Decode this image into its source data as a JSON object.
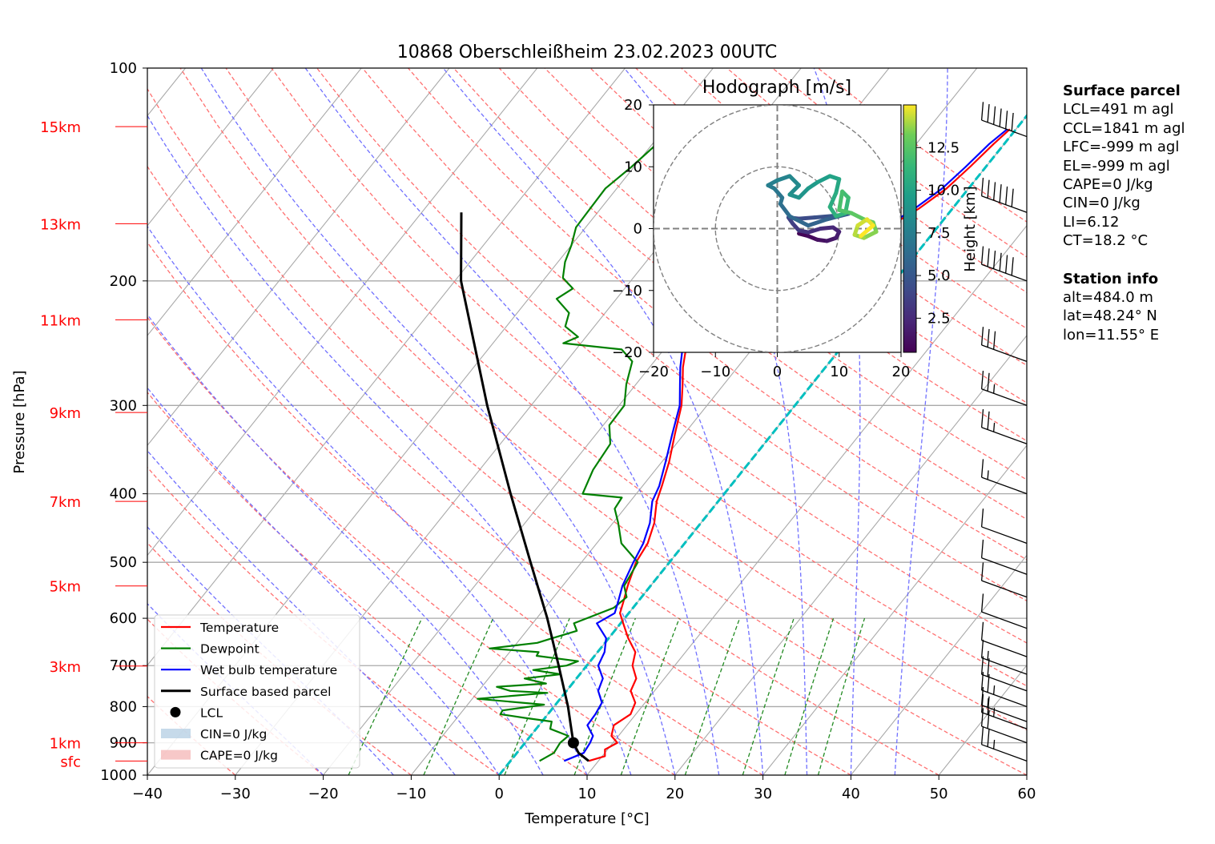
{
  "title": "10868 Oberschleißheim 23.02.2023 00UTC",
  "chart_data": {
    "type": "line",
    "subtype": "skew-T log-P diagram",
    "title": "10868 Oberschleißheim 23.02.2023 00UTC",
    "xlabel": "Temperature [°C]",
    "ylabel": "Pressure [hPa]",
    "xlim": [
      -40,
      60
    ],
    "ylim": [
      1000,
      100
    ],
    "y_scale": "log",
    "skewed_isotherms": true,
    "x_ticks": [
      "−40",
      "−30",
      "−20",
      "−10",
      "0",
      "10",
      "20",
      "30",
      "40",
      "50",
      "60"
    ],
    "y_ticks": [
      "1000",
      "900",
      "800",
      "700",
      "600",
      "500",
      "400",
      "300",
      "200",
      "100"
    ],
    "height_labels": [
      {
        "label": "sfc",
        "p": 955
      },
      {
        "label": "1km",
        "p": 900
      },
      {
        "label": "3km",
        "p": 701
      },
      {
        "label": "5km",
        "p": 540
      },
      {
        "label": "7km",
        "p": 410
      },
      {
        "label": "9km",
        "p": 307
      },
      {
        "label": "11km",
        "p": 227
      },
      {
        "label": "13km",
        "p": 166
      },
      {
        "label": "15km",
        "p": 121
      }
    ],
    "series": [
      {
        "name": "Temperature",
        "color": "#ff0000",
        "points": [
          [
            955,
            8.9
          ],
          [
            940,
            10.3
          ],
          [
            920,
            9.7
          ],
          [
            900,
            10.5
          ],
          [
            880,
            9.2
          ],
          [
            850,
            8.5
          ],
          [
            820,
            9.4
          ],
          [
            790,
            8.9
          ],
          [
            760,
            7.3
          ],
          [
            730,
            6.8
          ],
          [
            700,
            5.2
          ],
          [
            670,
            4.3
          ],
          [
            640,
            2.2
          ],
          [
            610,
            0.3
          ],
          [
            590,
            -1.0
          ],
          [
            570,
            -1.6
          ],
          [
            540,
            -2.6
          ],
          [
            500,
            -3.8
          ],
          [
            470,
            -4.2
          ],
          [
            440,
            -5.3
          ],
          [
            410,
            -7.0
          ],
          [
            390,
            -7.8
          ],
          [
            360,
            -9.2
          ],
          [
            330,
            -11.0
          ],
          [
            300,
            -12.9
          ],
          [
            280,
            -14.7
          ],
          [
            265,
            -16.2
          ],
          [
            250,
            -17.5
          ],
          [
            237,
            -17.6
          ],
          [
            225,
            -17.2
          ],
          [
            213,
            -15.6
          ],
          [
            200,
            -13.0
          ],
          [
            188,
            -10.9
          ],
          [
            178,
            -7.8
          ],
          [
            168,
            -5.7
          ],
          [
            158,
            -3.8
          ],
          [
            148,
            -2.5
          ],
          [
            138,
            -1.8
          ],
          [
            128,
            -1.2
          ],
          [
            122,
            -0.7
          ]
        ]
      },
      {
        "name": "Dewpoint",
        "color": "#008000",
        "points": [
          [
            955,
            3.3
          ],
          [
            930,
            4.2
          ],
          [
            900,
            4.0
          ],
          [
            880,
            4.3
          ],
          [
            860,
            1.6
          ],
          [
            840,
            1.1
          ],
          [
            830,
            -2.3
          ],
          [
            820,
            -5.4
          ],
          [
            810,
            -5.5
          ],
          [
            795,
            -1.3
          ],
          [
            780,
            -9.4
          ],
          [
            765,
            -2.0
          ],
          [
            760,
            -6.4
          ],
          [
            750,
            -8.3
          ],
          [
            742,
            -3.0
          ],
          [
            730,
            -5.9
          ],
          [
            720,
            -2.2
          ],
          [
            710,
            -5.7
          ],
          [
            700,
            -2.3
          ],
          [
            690,
            -1.4
          ],
          [
            678,
            -6.6
          ],
          [
            670,
            -6.7
          ],
          [
            662,
            -12.6
          ],
          [
            650,
            -7.7
          ],
          [
            640,
            -6.4
          ],
          [
            625,
            -4.3
          ],
          [
            610,
            -5.3
          ],
          [
            580,
            -2.2
          ],
          [
            560,
            -1.7
          ],
          [
            540,
            -3.0
          ],
          [
            500,
            -3.6
          ],
          [
            470,
            -7.2
          ],
          [
            440,
            -9.4
          ],
          [
            420,
            -11.1
          ],
          [
            405,
            -11.3
          ],
          [
            400,
            -16.1
          ],
          [
            370,
            -17.1
          ],
          [
            340,
            -17.5
          ],
          [
            320,
            -19.3
          ],
          [
            300,
            -19.4
          ],
          [
            280,
            -21.1
          ],
          [
            260,
            -22.5
          ],
          [
            250,
            -24.8
          ],
          [
            245,
            -32.0
          ],
          [
            240,
            -30.9
          ],
          [
            232,
            -33.3
          ],
          [
            222,
            -34.1
          ],
          [
            212,
            -36.8
          ],
          [
            205,
            -35.9
          ],
          [
            198,
            -38.0
          ],
          [
            188,
            -39.2
          ],
          [
            178,
            -40.0
          ],
          [
            168,
            -41.1
          ],
          [
            158,
            -41.2
          ],
          [
            148,
            -41.3
          ],
          [
            138,
            -40.3
          ],
          [
            128,
            -39.5
          ],
          [
            122,
            -38.2
          ]
        ]
      },
      {
        "name": "Wet bulb temperature",
        "color": "#0000ff",
        "points": [
          [
            955,
            6.1
          ],
          [
            930,
            7.6
          ],
          [
            900,
            7.4
          ],
          [
            880,
            7.1
          ],
          [
            850,
            5.5
          ],
          [
            820,
            5.4
          ],
          [
            790,
            5.1
          ],
          [
            760,
            3.6
          ],
          [
            730,
            3.0
          ],
          [
            700,
            1.3
          ],
          [
            670,
            0.8
          ],
          [
            640,
            -0.3
          ],
          [
            610,
            -2.7
          ],
          [
            590,
            -1.6
          ],
          [
            570,
            -2.2
          ],
          [
            540,
            -3.2
          ],
          [
            500,
            -4.1
          ],
          [
            470,
            -4.7
          ],
          [
            440,
            -5.8
          ],
          [
            410,
            -7.5
          ],
          [
            390,
            -8.1
          ],
          [
            360,
            -9.6
          ],
          [
            330,
            -11.3
          ],
          [
            300,
            -13.1
          ],
          [
            280,
            -15.0
          ],
          [
            265,
            -16.5
          ],
          [
            250,
            -17.9
          ],
          [
            237,
            -17.8
          ],
          [
            225,
            -17.3
          ],
          [
            213,
            -15.9
          ],
          [
            200,
            -13.2
          ],
          [
            188,
            -11.2
          ],
          [
            178,
            -8.1
          ],
          [
            168,
            -6.0
          ],
          [
            158,
            -4.3
          ],
          [
            148,
            -3.0
          ],
          [
            138,
            -2.3
          ],
          [
            128,
            -1.7
          ],
          [
            122,
            -1.0
          ]
        ]
      },
      {
        "name": "Surface based parcel",
        "color": "#000000",
        "points": [
          [
            955,
            8.9
          ],
          [
            930,
            7.0
          ],
          [
            900,
            5.5
          ],
          [
            850,
            3.6
          ],
          [
            800,
            1.6
          ],
          [
            700,
            -3.2
          ],
          [
            600,
            -8.8
          ],
          [
            500,
            -15.8
          ],
          [
            400,
            -24.3
          ],
          [
            300,
            -35.0
          ],
          [
            200,
            -49.3
          ],
          [
            160,
            -55.5
          ]
        ]
      }
    ],
    "lcl": {
      "p": 900,
      "t": 5.5,
      "label": "LCL"
    },
    "freezing_level_line": {
      "color": "#00bfbf",
      "t": 0
    },
    "legend": {
      "placement": "lower-left",
      "entries": [
        "Temperature",
        "Dewpoint",
        "Wet bulb temperature",
        "Surface based parcel",
        "LCL",
        "CIN=0 J/kg",
        "CAPE=0 J/kg"
      ]
    },
    "wind_barbs": [
      {
        "p": 955,
        "speed_kt": 25
      },
      {
        "p": 900,
        "speed_kt": 20
      },
      {
        "p": 860,
        "speed_kt": 25
      },
      {
        "p": 840,
        "speed_kt": 15
      },
      {
        "p": 800,
        "speed_kt": 25
      },
      {
        "p": 760,
        "speed_kt": 20
      },
      {
        "p": 720,
        "speed_kt": 15
      },
      {
        "p": 680,
        "speed_kt": 10
      },
      {
        "p": 620,
        "speed_kt": 10
      },
      {
        "p": 560,
        "speed_kt": 10
      },
      {
        "p": 520,
        "speed_kt": 10
      },
      {
        "p": 470,
        "speed_kt": 10
      },
      {
        "p": 400,
        "speed_kt": 15
      },
      {
        "p": 340,
        "speed_kt": 25
      },
      {
        "p": 300,
        "speed_kt": 25
      },
      {
        "p": 260,
        "speed_kt": 30
      },
      {
        "p": 200,
        "speed_kt": 60
      },
      {
        "p": 160,
        "speed_kt": 60
      },
      {
        "p": 125,
        "speed_kt": 60
      }
    ]
  },
  "hodograph": {
    "title": "Hodograph [m/s]",
    "xlim": [
      -20,
      20
    ],
    "ylim": [
      -20,
      20
    ],
    "x_ticks": [
      "−20",
      "−10",
      "0",
      "10",
      "20"
    ],
    "y_ticks": [
      "20",
      "10",
      "0",
      "−10",
      "−20"
    ],
    "rings": [
      10,
      20
    ],
    "colorbar_label": "Height [km]",
    "colorbar_ticks": [
      "2.5",
      "5.0",
      "7.5",
      "10.0",
      "12.5"
    ],
    "colorbar_range": [
      0.5,
      15
    ],
    "trace": [
      [
        0.5,
        3.5,
        -0.8
      ],
      [
        0.8,
        5.0,
        -1.2
      ],
      [
        1.1,
        6.5,
        -1.8
      ],
      [
        1.4,
        8.0,
        -2.0
      ],
      [
        1.7,
        9.5,
        -1.5
      ],
      [
        2.0,
        10.0,
        -0.5
      ],
      [
        2.3,
        9.0,
        0.2
      ],
      [
        2.6,
        7.0,
        0.0
      ],
      [
        2.9,
        5.0,
        -0.6
      ],
      [
        3.2,
        3.5,
        -0.3
      ],
      [
        3.5,
        2.5,
        0.8
      ],
      [
        3.8,
        1.8,
        1.8
      ],
      [
        4.1,
        3.5,
        1.6
      ],
      [
        4.4,
        6.0,
        1.8
      ],
      [
        4.7,
        8.5,
        2.0
      ],
      [
        5.0,
        10.5,
        2.2
      ],
      [
        5.3,
        11.5,
        2.4
      ],
      [
        5.6,
        8.0,
        1.5
      ],
      [
        5.9,
        5.0,
        0.5
      ],
      [
        6.2,
        2.0,
        2.0
      ],
      [
        6.5,
        0.5,
        4.0
      ],
      [
        6.8,
        0.8,
        5.0
      ],
      [
        7.1,
        -0.5,
        6.5
      ],
      [
        7.4,
        -1.5,
        7.0
      ],
      [
        7.7,
        0.0,
        7.8
      ],
      [
        8.0,
        2.0,
        8.5
      ],
      [
        8.3,
        3.5,
        7.0
      ],
      [
        8.6,
        2.0,
        5.5
      ],
      [
        8.9,
        3.5,
        5.0
      ],
      [
        9.2,
        5.0,
        6.5
      ],
      [
        9.5,
        6.5,
        7.5
      ],
      [
        9.8,
        8.5,
        8.5
      ],
      [
        10.1,
        10.0,
        8.0
      ],
      [
        10.4,
        9.5,
        5.8
      ],
      [
        10.7,
        8.5,
        3.5
      ],
      [
        11.0,
        9.5,
        2.0
      ],
      [
        11.3,
        11.0,
        2.5
      ],
      [
        11.6,
        11.5,
        5.0
      ],
      [
        11.9,
        10.5,
        6.0
      ],
      [
        12.2,
        10.0,
        3.0
      ],
      [
        12.5,
        12.0,
        2.5
      ],
      [
        12.8,
        14.0,
        1.5
      ],
      [
        13.1,
        15.5,
        1.0
      ],
      [
        13.4,
        16.0,
        -0.5
      ],
      [
        13.7,
        14.0,
        -1.5
      ],
      [
        14.0,
        12.5,
        -1.0
      ],
      [
        14.3,
        13.0,
        0.5
      ],
      [
        14.6,
        14.5,
        1.5
      ],
      [
        14.9,
        15.5,
        0.5
      ],
      [
        15.2,
        13.5,
        -1.2
      ]
    ]
  },
  "sidebar": {
    "surface_heading": "Surface parcel",
    "surface_lines": [
      "LCL=491 m agl",
      "CCL=1841 m agl",
      "LFC=-999 m agl",
      "EL=-999 m agl",
      "CAPE=0 J/kg",
      "CIN=0 J/kg",
      "LI=6.12",
      "CT=18.2 °C"
    ],
    "station_heading": "Station info",
    "station_lines": [
      "alt=484.0 m",
      "lat=48.24° N",
      "lon=11.55° E"
    ]
  },
  "colors": {
    "isotherm": "#a9a9a9",
    "dry_adiabat": "#ff7070",
    "moist_adiabat": "#7070ff",
    "mixing_ratio": "#228b22",
    "height_marker": "#ff0000"
  }
}
